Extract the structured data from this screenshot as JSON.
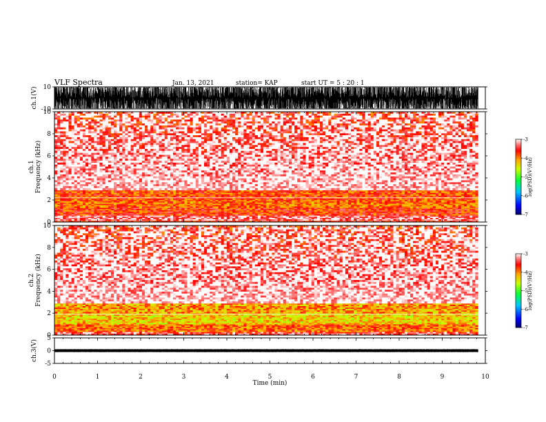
{
  "header": {
    "title": "VLF Spectra",
    "date": "Jan. 13, 2021",
    "station": "station= KAP",
    "start": "start  UT =   5 : 20 : 1"
  },
  "chart_data": [
    {
      "type": "line",
      "name": "ch1-waveform",
      "ylabel": "ch.1(V)",
      "ylim": [
        -10,
        10
      ],
      "yticks": [
        10,
        -10
      ],
      "xlim": [
        0,
        10
      ],
      "trace": {
        "color": "#000000",
        "low": -9.5,
        "high": 9.5,
        "duration_min": 9.83
      }
    },
    {
      "type": "heatmap",
      "name": "ch1-spectrogram",
      "ylabel": "ch.1\nFrequency (kHz)",
      "ylim": [
        0,
        10
      ],
      "yticks": [
        0,
        2,
        4,
        6,
        8,
        10
      ],
      "xlim": [
        0,
        10
      ],
      "duration_min": 9.83,
      "colorbar": {
        "label": "log(PSD)(V²/Hz)",
        "min": -7,
        "max": -3,
        "ticks": [
          -3,
          -4,
          -5,
          -6,
          -7
        ]
      },
      "bands": [
        {
          "f_lo": 0.0,
          "f_hi": 0.15,
          "psd": -3.6
        },
        {
          "f_lo": 0.15,
          "f_hi": 0.6,
          "psd": -3.3
        },
        {
          "f_lo": 0.6,
          "f_hi": 1.3,
          "psd": -3.7
        },
        {
          "f_lo": 1.3,
          "f_hi": 2.0,
          "psd": -3.9
        },
        {
          "f_lo": 2.0,
          "f_hi": 2.9,
          "psd": -3.8
        },
        {
          "f_lo": 2.9,
          "f_hi": 10.0,
          "psd": -3.0,
          "sparse": true
        }
      ],
      "lines_khz": [
        5.5,
        2.2
      ]
    },
    {
      "type": "heatmap",
      "name": "ch2-spectrogram",
      "ylabel": "ch.2\nFrequency (kHz)",
      "ylim": [
        0,
        10
      ],
      "yticks": [
        0,
        2,
        4,
        6,
        8,
        10
      ],
      "xlim": [
        0,
        10
      ],
      "duration_min": 9.83,
      "colorbar": {
        "label": "log(PSD)(V²/Hz)",
        "min": -7,
        "max": -3,
        "ticks": [
          -3,
          -4,
          -5,
          -6,
          -7
        ]
      },
      "bands": [
        {
          "f_lo": 0.0,
          "f_hi": 0.3,
          "psd": -3.4
        },
        {
          "f_lo": 0.3,
          "f_hi": 1.0,
          "psd": -3.9
        },
        {
          "f_lo": 1.0,
          "f_hi": 2.0,
          "psd": -4.3
        },
        {
          "f_lo": 2.0,
          "f_hi": 2.9,
          "psd": -4.1
        },
        {
          "f_lo": 2.9,
          "f_hi": 10.0,
          "psd": -3.0,
          "sparse": true
        }
      ],
      "lines_khz": [
        1.9
      ]
    },
    {
      "type": "line",
      "name": "ch3-waveform",
      "ylabel": "ch.3(V)",
      "ylim": [
        -5,
        5
      ],
      "yticks": [
        5,
        0,
        -5
      ],
      "xlim": [
        0,
        10
      ],
      "xticks": [
        0,
        1,
        2,
        3,
        4,
        5,
        6,
        7,
        8,
        9,
        10
      ],
      "xlabel": "Time (min)",
      "trace": {
        "color": "#000000",
        "low": -0.6,
        "high": 0.6,
        "duration_min": 9.83
      }
    }
  ]
}
